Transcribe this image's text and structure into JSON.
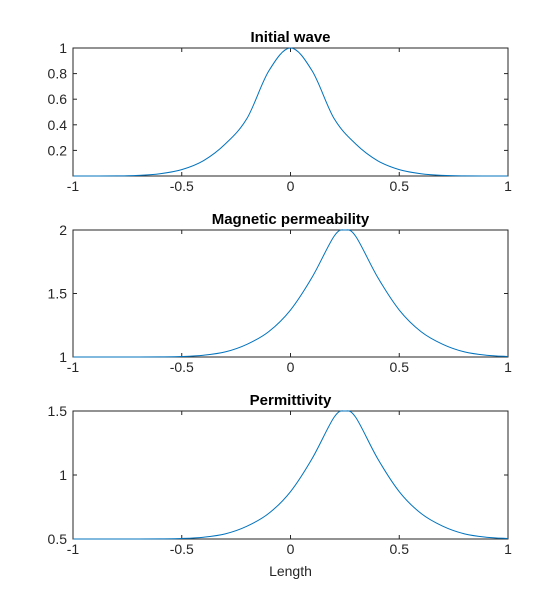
{
  "chart_data": [
    {
      "type": "line",
      "title": "Initial wave",
      "xlabel": "",
      "ylabel": "",
      "xlim": [
        -1,
        1
      ],
      "ylim": [
        0,
        1
      ],
      "xticks": [
        "-1",
        "-0.5",
        "0",
        "0.5",
        "1"
      ],
      "yticks": [
        "0.2",
        "0.4",
        "0.6",
        "0.8",
        "1"
      ],
      "grid": false,
      "series": [
        {
          "color": "#0072BD",
          "x": [
            -1,
            -0.9,
            -0.8,
            -0.7,
            -0.6,
            -0.5,
            -0.4,
            -0.3,
            -0.2,
            -0.1,
            0,
            0.1,
            0.2,
            0.3,
            0.4,
            0.5,
            0.6,
            0.7,
            0.8,
            0.9,
            1
          ],
          "y": [
            0.0,
            0.0,
            0.001,
            0.005,
            0.018,
            0.05,
            0.12,
            0.25,
            0.45,
            0.82,
            1.0,
            0.82,
            0.45,
            0.25,
            0.12,
            0.05,
            0.018,
            0.005,
            0.001,
            0.0,
            0.0
          ]
        }
      ]
    },
    {
      "type": "line",
      "title": "Magnetic permeability",
      "xlabel": "",
      "ylabel": "",
      "xlim": [
        -1,
        1
      ],
      "ylim": [
        1,
        2
      ],
      "xticks": [
        "-1",
        "-0.5",
        "0",
        "0.5",
        "1"
      ],
      "yticks": [
        "1",
        "1.5",
        "2"
      ],
      "grid": false,
      "series": [
        {
          "color": "#0072BD",
          "x": [
            -1,
            -0.9,
            -0.8,
            -0.7,
            -0.6,
            -0.5,
            -0.4,
            -0.3,
            -0.2,
            -0.1,
            0,
            0.1,
            0.2,
            0.25,
            0.3,
            0.4,
            0.5,
            0.6,
            0.7,
            0.8,
            0.9,
            1
          ],
          "y": [
            1.0,
            1.0,
            1.0,
            1.0,
            1.001,
            1.004,
            1.014,
            1.04,
            1.1,
            1.2,
            1.37,
            1.63,
            1.95,
            2.0,
            1.95,
            1.63,
            1.37,
            1.2,
            1.1,
            1.04,
            1.014,
            1.004
          ]
        }
      ]
    },
    {
      "type": "line",
      "title": "Permittivity",
      "xlabel": "Length",
      "ylabel": "",
      "xlim": [
        -1,
        1
      ],
      "ylim": [
        0.5,
        1.5
      ],
      "xticks": [
        "-1",
        "-0.5",
        "0",
        "0.5",
        "1"
      ],
      "yticks": [
        "0.5",
        "1",
        "1.5"
      ],
      "grid": false,
      "series": [
        {
          "color": "#0072BD",
          "x": [
            -1,
            -0.9,
            -0.8,
            -0.7,
            -0.6,
            -0.5,
            -0.4,
            -0.3,
            -0.2,
            -0.1,
            0,
            0.1,
            0.2,
            0.25,
            0.3,
            0.4,
            0.5,
            0.6,
            0.7,
            0.8,
            0.9,
            1
          ],
          "y": [
            0.5,
            0.5,
            0.5,
            0.5,
            0.501,
            0.504,
            0.514,
            0.54,
            0.6,
            0.7,
            0.87,
            1.13,
            1.45,
            1.5,
            1.45,
            1.13,
            0.87,
            0.7,
            0.6,
            0.54,
            0.514,
            0.504
          ]
        }
      ]
    }
  ]
}
